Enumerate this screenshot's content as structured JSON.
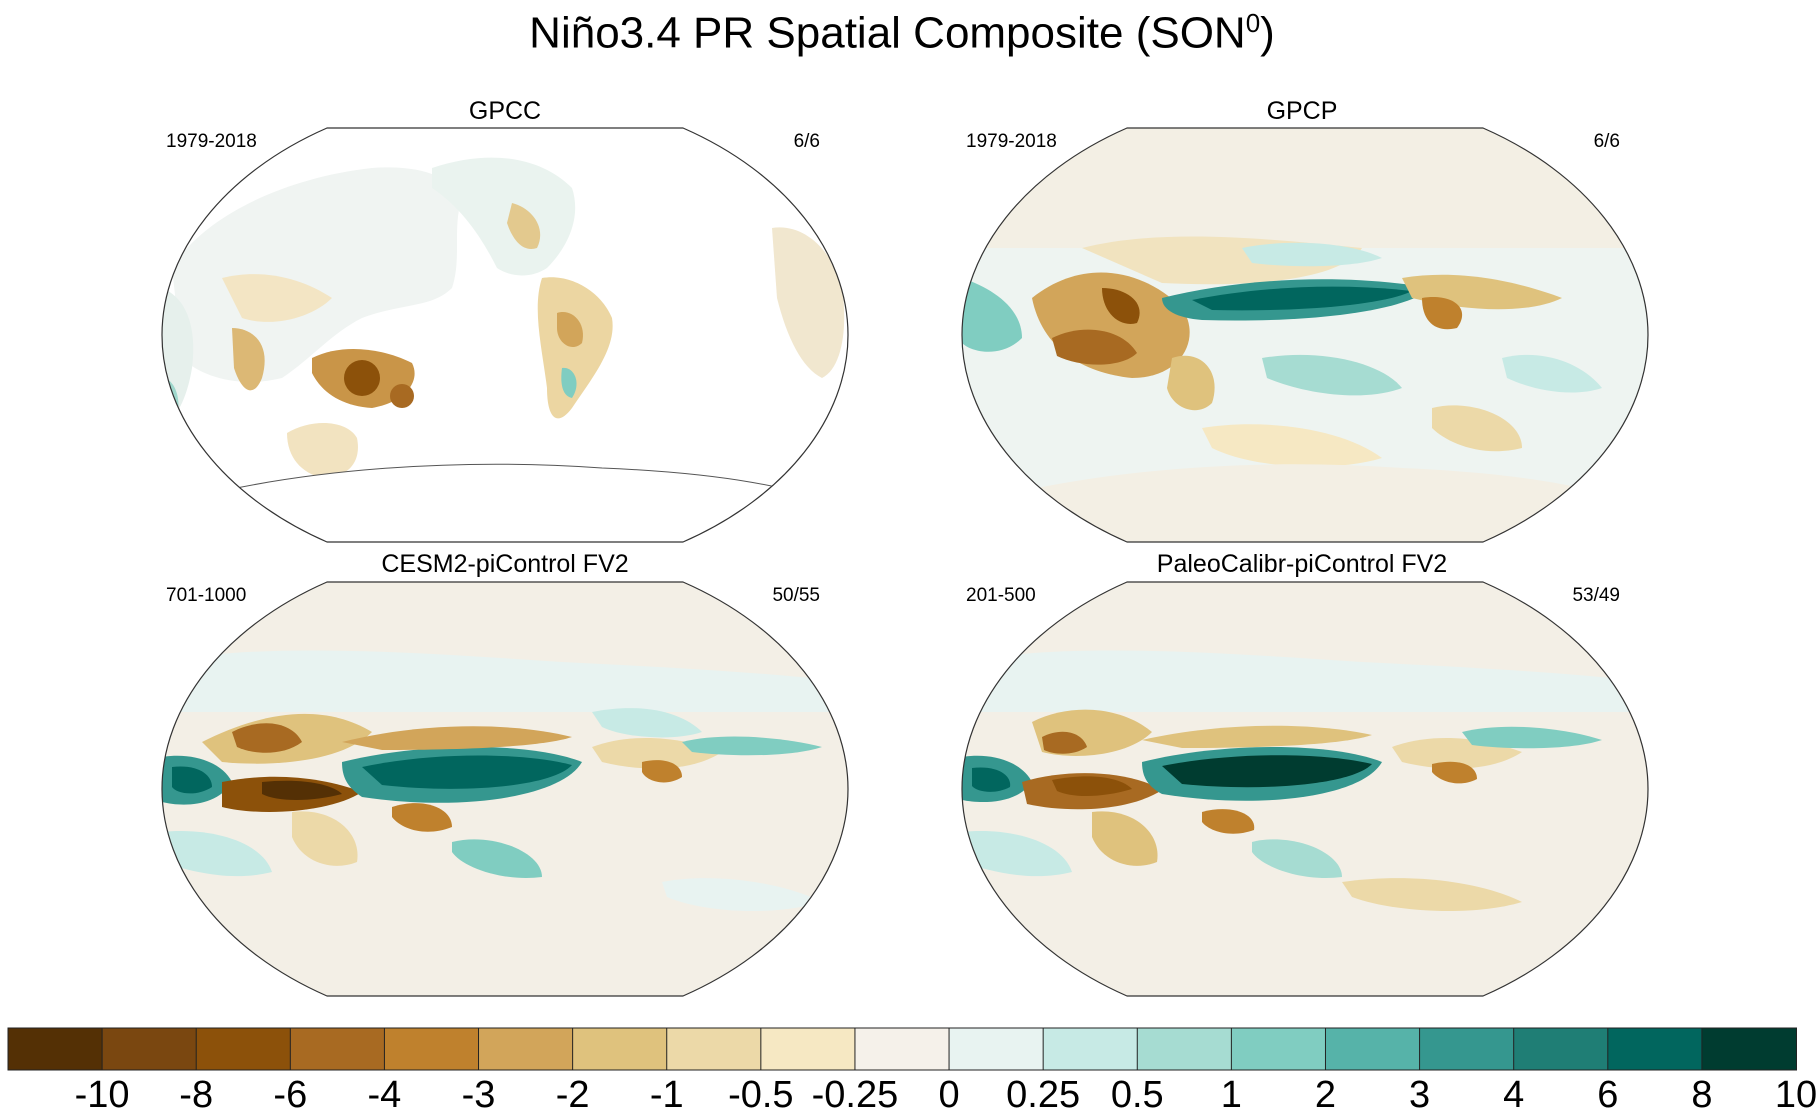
{
  "title": {
    "main": "Niño3.4 PR Spatial Composite (SON",
    "superscript": "0",
    "suffix": ")"
  },
  "panels": [
    {
      "id": "gpcc",
      "title": "GPCC",
      "period": "1979-2018",
      "count": "6/6",
      "ocean_data": false
    },
    {
      "id": "gpcp",
      "title": "GPCP",
      "period": "1979-2018",
      "count": "6/6",
      "ocean_data": true
    },
    {
      "id": "cesm2",
      "title": "CESM2-piControl FV2",
      "period": "701-1000",
      "count": "50/55",
      "ocean_data": true
    },
    {
      "id": "paleo",
      "title": "PaleoCalibr-piControl FV2",
      "period": "201-500",
      "count": "53/49",
      "ocean_data": true
    }
  ],
  "colorbar": {
    "labels": [
      "-10",
      "-8",
      "-6",
      "-4",
      "-3",
      "-2",
      "-1",
      "-0.5",
      "-0.25",
      "0",
      "0.25",
      "0.5",
      "1",
      "2",
      "3",
      "4",
      "6",
      "8",
      "10"
    ],
    "colors": [
      "#543005",
      "#7a4710",
      "#8c510a",
      "#a86a22",
      "#bf812d",
      "#d2a55a",
      "#dfc27d",
      "#ecd9a8",
      "#f6e8c3",
      "#f5f1ea",
      "#e8f3f1",
      "#c7eae5",
      "#a6dcd2",
      "#80cdc1",
      "#56b3a9",
      "#35978f",
      "#1f7e75",
      "#01665e",
      "#003c30"
    ]
  }
}
